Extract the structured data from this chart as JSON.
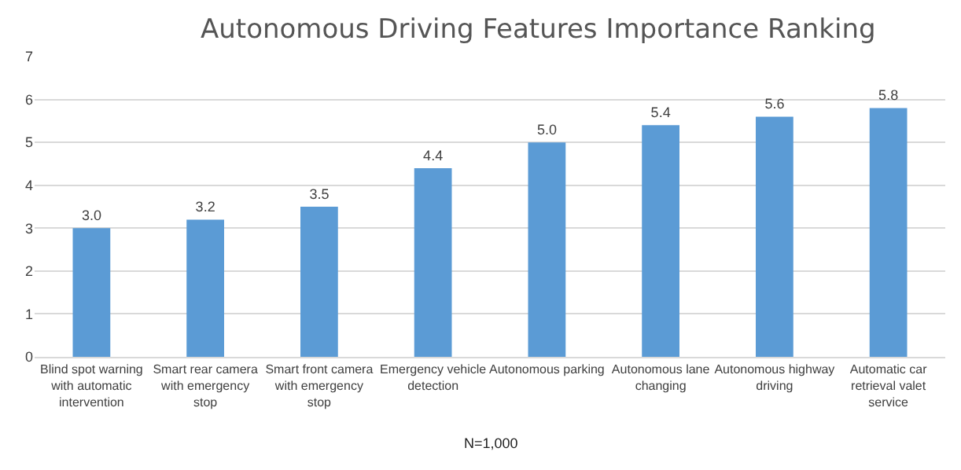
{
  "chart_data": {
    "type": "bar",
    "title": "Autonomous Driving Features Importance Ranking",
    "categories": [
      "Blind spot warning with automatic intervention",
      "Smart rear camera with emergency stop",
      "Smart front camera with emergency stop",
      "Emergency vehicle detection",
      "Autonomous parking",
      "Autonomous lane changing",
      "Autonomous highway driving",
      "Automatic car retrieval valet service"
    ],
    "values": [
      3.0,
      3.2,
      3.5,
      4.4,
      5.0,
      5.4,
      5.6,
      5.8
    ],
    "value_labels": [
      "3.0",
      "3.2",
      "3.5",
      "4.4",
      "5.0",
      "5.4",
      "5.6",
      "5.8"
    ],
    "color": "#5b9bd5",
    "ylim": [
      0,
      7
    ],
    "yticks": [
      0,
      1,
      2,
      3,
      4,
      5,
      6,
      7
    ],
    "grid": "y",
    "annotations": [
      "N=1,000"
    ]
  }
}
